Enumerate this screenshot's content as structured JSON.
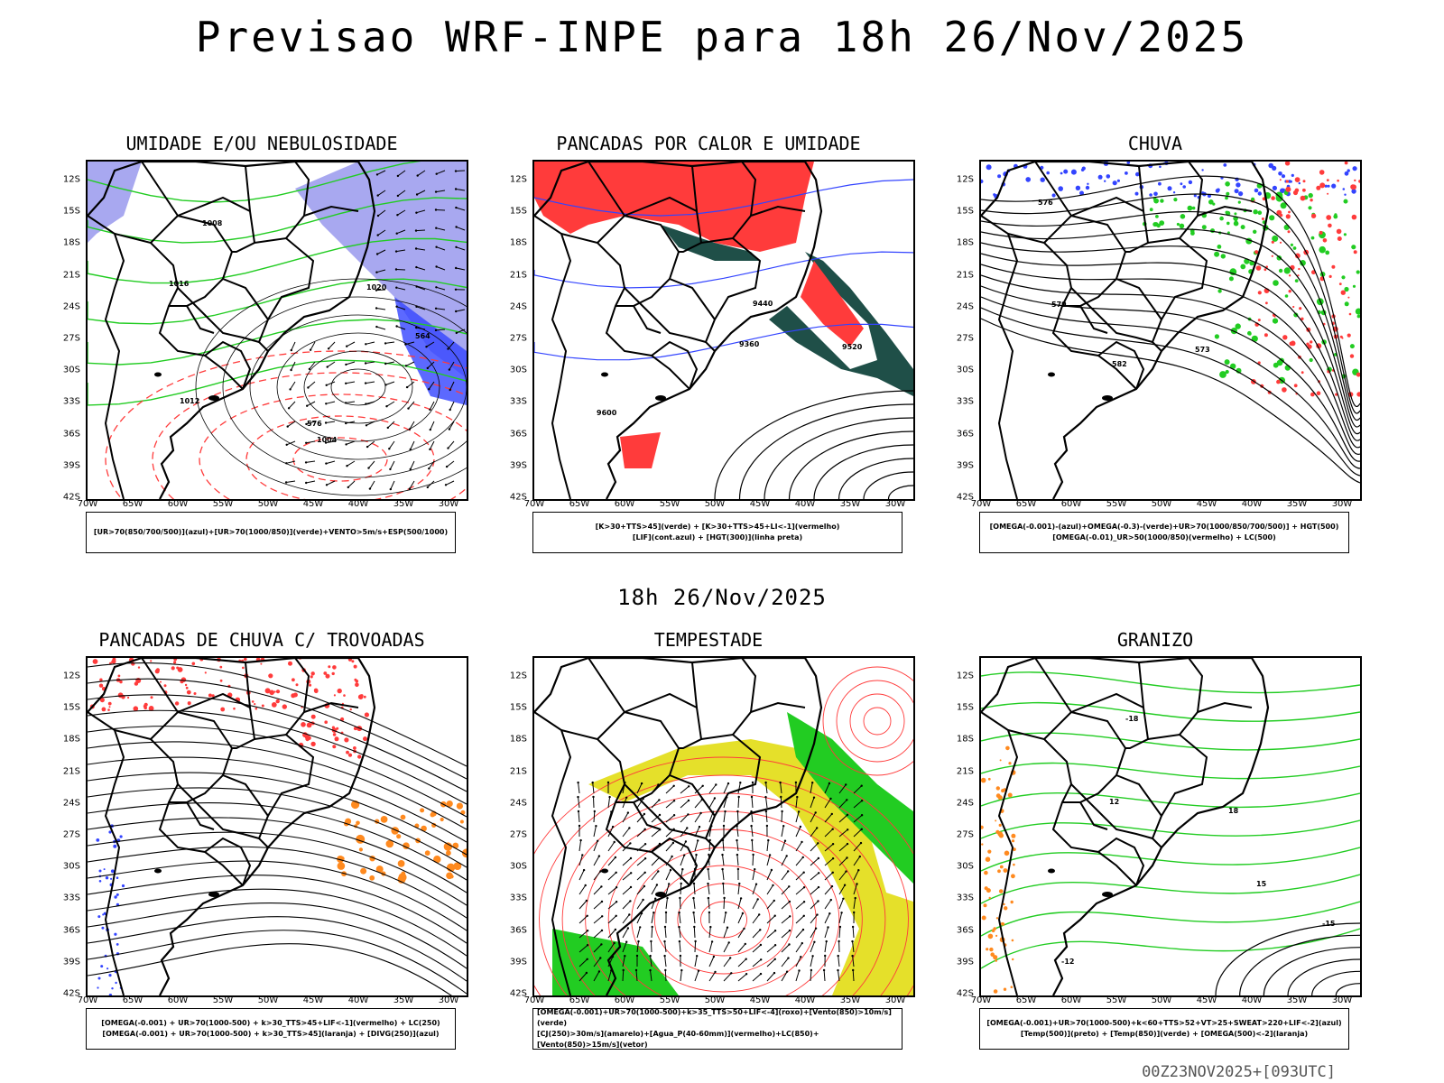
{
  "header": {
    "title": "Previsao WRF-INPE  para 18h 26/Nov/2025",
    "mid_label": "18h 26/Nov/2025",
    "run_label": "00Z23NOV2025+[093UTC]"
  },
  "axes": {
    "lat_ticks": [
      "12S",
      "15S",
      "18S",
      "21S",
      "24S",
      "27S",
      "30S",
      "33S",
      "36S",
      "39S",
      "42S"
    ],
    "lon_ticks": [
      "70W",
      "65W",
      "60W",
      "55W",
      "50W",
      "45W",
      "40W",
      "35W",
      "30W"
    ]
  },
  "panels": [
    {
      "title": "UMIDADE E/OU NEBULOSIDADE",
      "legend": [
        "[UR>70(850/700/500)](azul)+[UR>70(1000/850)](verde)+VENTO>5m/s+ESP(500/1000)"
      ]
    },
    {
      "title": "PANCADAS POR CALOR E UMIDADE",
      "legend": [
        "[K>30+TTS>45](verde) + [K>30+TTS>45+LI<-1](vermelho)",
        "[LIF](cont.azul) + [HGT(300)](linha preta)"
      ]
    },
    {
      "title": "CHUVA",
      "legend": [
        "[OMEGA(-0.001)-(azul)+OMEGA(-0.3)-(verde)+UR>70(1000/850/700/500)] + HGT(500)",
        "[OMEGA(-0.01)_UR>50(1000/850)(vermelho) + LC(500)"
      ]
    },
    {
      "title": "PANCADAS DE CHUVA C/ TROVOADAS",
      "legend": [
        "[OMEGA(-0.001) + UR>70(1000-500) + k>30_TTS>45+LIF<-1](vermelho) + LC(250)",
        "[OMEGA(-0.001) + UR>70(1000-500) + k>30_TTS>45](laranja) + [DIVG(250)](azul)"
      ]
    },
    {
      "title": "TEMPESTADE",
      "legend": [
        "[OMEGA(-0.001)+UR>70(1000-500)+k>35_TTS>50+LIF<-4](roxo)+[Vento(850)>10m/s](verde)",
        "[CJ(250)>30m/s](amarelo)+[Agua_P(40-60mm)](vermelho)+LC(850)+[Vento(850)>15m/s](vetor)"
      ]
    },
    {
      "title": "GRANIZO",
      "legend": [
        "[OMEGA(-0.001)+UR>70(1000-500)+k<60+TTS>52+VT>25+SWEAT>220+LIF<-2](azul)",
        "[Temp(500)](preto) + [Temp(850)](verde) + [OMEGA(500)<-2](laranja)"
      ]
    }
  ],
  "contour_labels": {
    "p1": [
      "1004",
      "1008",
      "1012",
      "1016",
      "1020",
      "576",
      "564"
    ],
    "p2": [
      "9600",
      "9520",
      "9440",
      "9360"
    ],
    "p3": [
      "582",
      "579",
      "576",
      "573"
    ],
    "p6": [
      "-12",
      "-15",
      "-18",
      "12",
      "15",
      "18"
    ]
  },
  "colors": {
    "red": "#ff3b3b",
    "green": "#22cc22",
    "blue": "#3344ff",
    "lavender": "#a8a8f0",
    "dark_teal": "#1f4f48",
    "yellow": "#e5e02a",
    "orange": "#ff8a1f"
  }
}
